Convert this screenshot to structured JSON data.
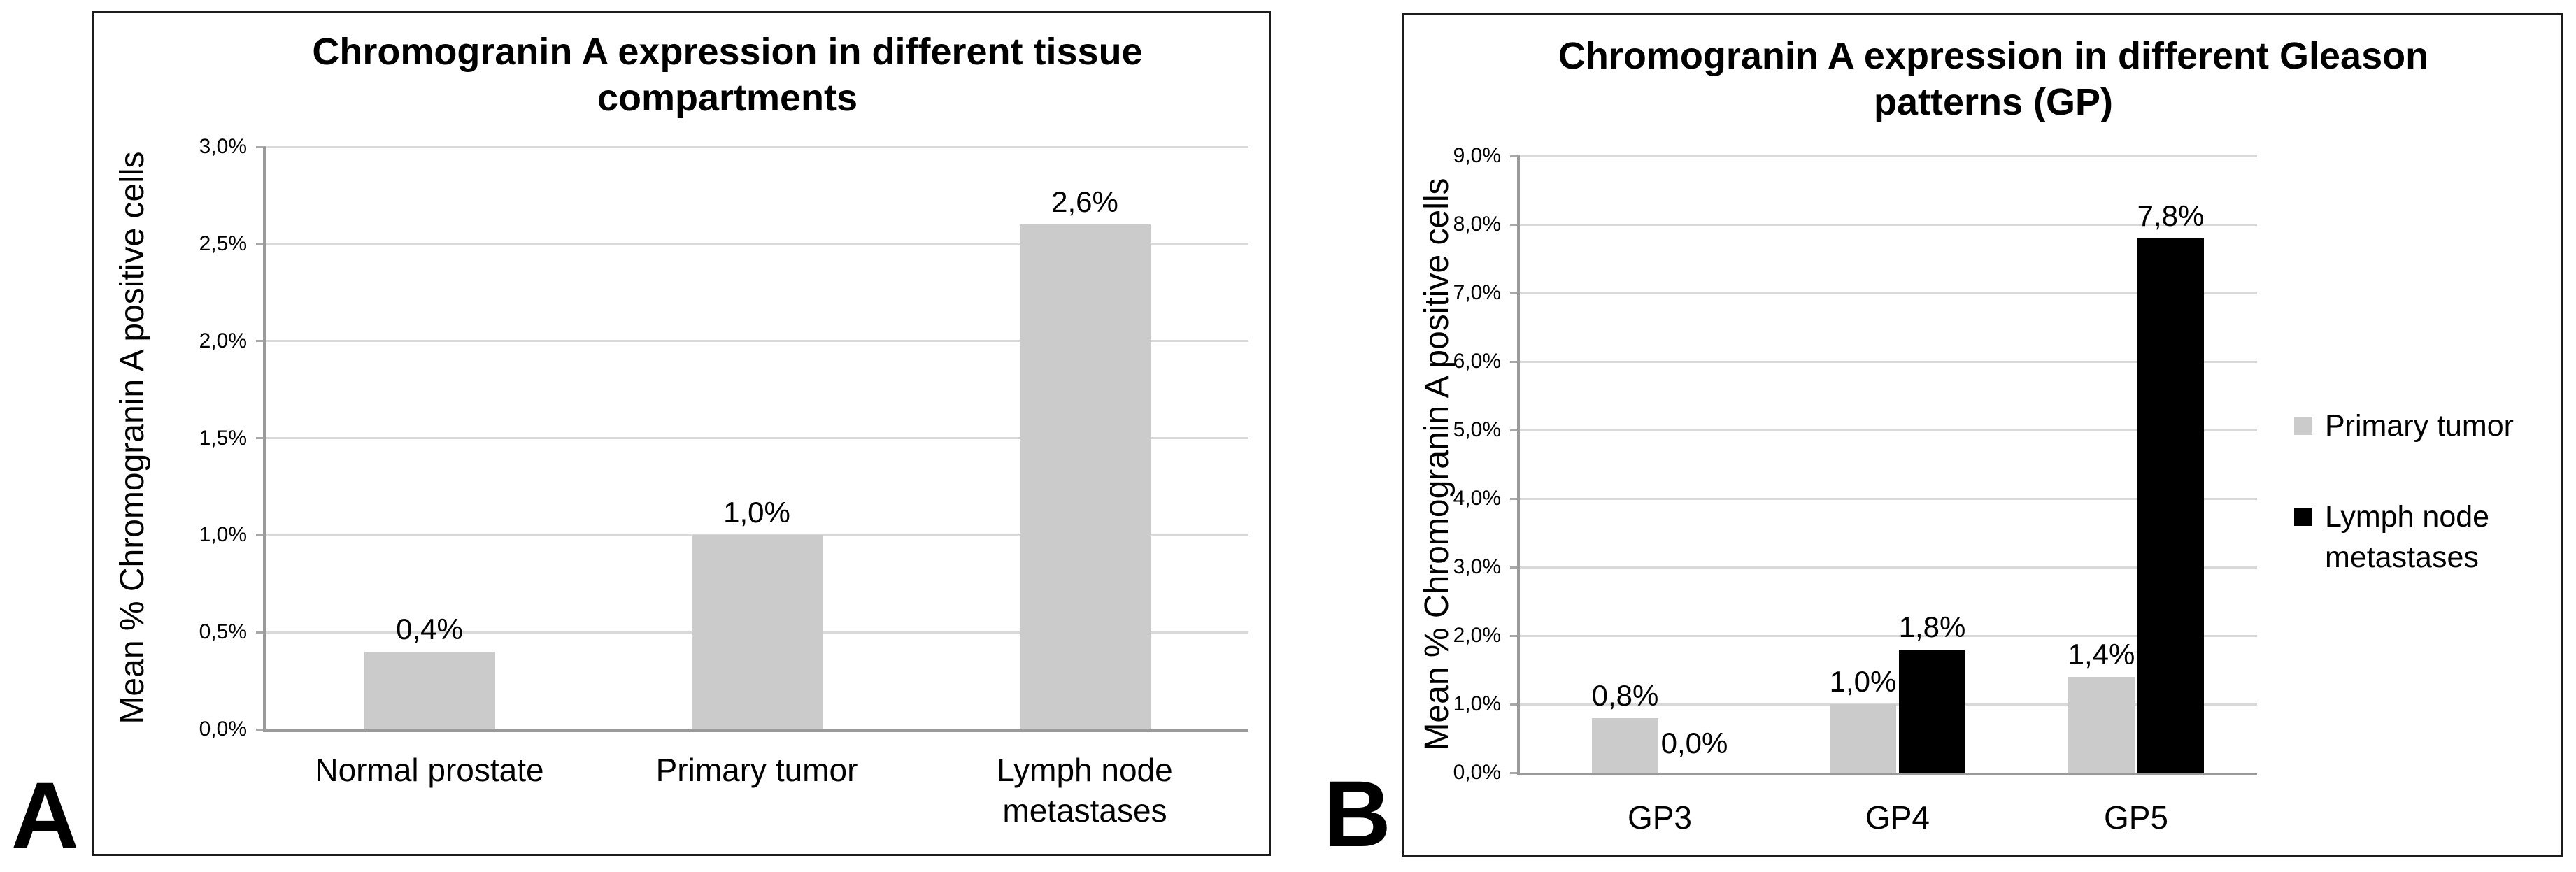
{
  "figure": {
    "background": "#ffffff",
    "panel_count": 2
  },
  "colors": {
    "bar_gray": "#cbcbcb",
    "bar_black": "#000000",
    "gridline": "#d9d9d9",
    "axis": "#9a9a9a",
    "tick_mark": "#a8a8a8",
    "panel_border": "#1c1c1c",
    "text": "#000000",
    "background": "#ffffff"
  },
  "chart_data": [
    {
      "type": "bar",
      "panel_label": "A",
      "title": "Chromogranin A expression in different tissue compartments",
      "title_lines": [
        "Chromogranin A expression in different tissue",
        "compartments"
      ],
      "ylabel": "Mean % Chromogranin A positive cells",
      "xlabel": "",
      "ylim": [
        0,
        3
      ],
      "grid": true,
      "legend": null,
      "categories": [
        "Normal prostate",
        "Primary tumor",
        "Lymph node metastases"
      ],
      "category_lines": [
        [
          "Normal prostate"
        ],
        [
          "Primary tumor"
        ],
        [
          "Lymph node",
          "metastases"
        ]
      ],
      "y_ticks": [
        {
          "v": 0,
          "label": "0,0%"
        },
        {
          "v": 0.5,
          "label": "0,5%"
        },
        {
          "v": 1,
          "label": "1,0%"
        },
        {
          "v": 1.5,
          "label": "1,5%"
        },
        {
          "v": 2,
          "label": "2,0%"
        },
        {
          "v": 2.5,
          "label": "2,5%"
        },
        {
          "v": 3,
          "label": "3,0%"
        }
      ],
      "series": [
        {
          "name": "",
          "color": "#cbcbcb",
          "values": [
            0.4,
            1.0,
            2.6
          ],
          "value_labels": [
            "0,4%",
            "1,0%",
            "2,6%"
          ]
        }
      ]
    },
    {
      "type": "bar",
      "panel_label": "B",
      "title": "Chromogranin A expression in different Gleason patterns (GP)",
      "title_lines": [
        "Chromogranin A expression in different Gleason",
        "patterns (GP)"
      ],
      "ylabel": "Mean % Chromogranin A positive cells",
      "xlabel": "",
      "ylim": [
        0,
        9
      ],
      "grid": true,
      "legend": {
        "position": "right",
        "entries": [
          {
            "label": "Primary tumor",
            "label_lines": [
              "Primary tumor"
            ],
            "color": "#cbcbcb"
          },
          {
            "label": "Lymph node metastases",
            "label_lines": [
              "Lymph node",
              "metastases"
            ],
            "color": "#000000"
          }
        ]
      },
      "categories": [
        "GP3",
        "GP4",
        "GP5"
      ],
      "category_lines": [
        [
          "GP3"
        ],
        [
          "GP4"
        ],
        [
          "GP5"
        ]
      ],
      "y_ticks": [
        {
          "v": 0,
          "label": "0,0%"
        },
        {
          "v": 1,
          "label": "1,0%"
        },
        {
          "v": 2,
          "label": "2,0%"
        },
        {
          "v": 3,
          "label": "3,0%"
        },
        {
          "v": 4,
          "label": "4,0%"
        },
        {
          "v": 5,
          "label": "5,0%"
        },
        {
          "v": 6,
          "label": "6,0%"
        },
        {
          "v": 7,
          "label": "7,0%"
        },
        {
          "v": 8,
          "label": "8,0%"
        },
        {
          "v": 9,
          "label": "9,0%"
        }
      ],
      "series": [
        {
          "name": "Primary tumor",
          "color": "#cbcbcb",
          "values": [
            0.8,
            1.0,
            1.4
          ],
          "value_labels": [
            "0,8%",
            "1,0%",
            "1,4%"
          ]
        },
        {
          "name": "Lymph node metastases",
          "color": "#000000",
          "values": [
            0.0,
            1.8,
            7.8
          ],
          "value_labels": [
            "0,0%",
            "1,8%",
            "7,8%"
          ]
        }
      ]
    }
  ]
}
